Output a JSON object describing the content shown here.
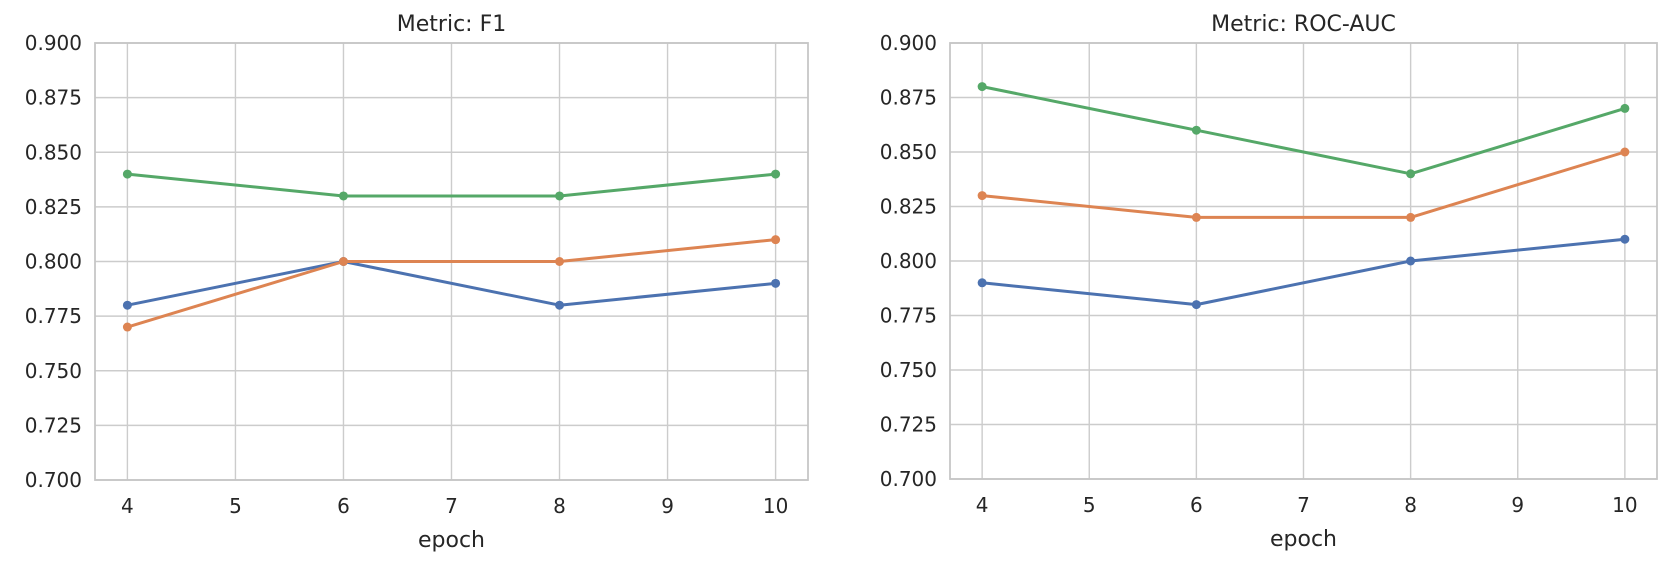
{
  "style": {
    "background": "#ffffff",
    "grid_color": "#cccccc",
    "spine_color": "#c6c6c6",
    "text_color": "#262626"
  },
  "chart_data": [
    {
      "type": "line",
      "title": "Metric: F1",
      "xlabel": "epoch",
      "ylabel": "",
      "grid": true,
      "legend": "none",
      "x": [
        4,
        6,
        8,
        10
      ],
      "xlim": [
        3.7,
        10.3
      ],
      "ylim": [
        0.7,
        0.9
      ],
      "xticks": [
        4,
        5,
        6,
        7,
        8,
        9,
        10
      ],
      "xtick_labels": [
        "4",
        "5",
        "6",
        "7",
        "8",
        "9",
        "10"
      ],
      "yticks": [
        0.7,
        0.725,
        0.75,
        0.775,
        0.8,
        0.825,
        0.85,
        0.875,
        0.9
      ],
      "ytick_labels": [
        "0.700",
        "0.725",
        "0.750",
        "0.775",
        "0.800",
        "0.825",
        "0.850",
        "0.875",
        "0.900"
      ],
      "series": [
        {
          "name": "blue-series",
          "color": "#4C72B0",
          "values": [
            0.78,
            0.8,
            0.78,
            0.79
          ]
        },
        {
          "name": "orange-series",
          "color": "#DD8452",
          "values": [
            0.77,
            0.8,
            0.8,
            0.81
          ]
        },
        {
          "name": "green-series",
          "color": "#55A868",
          "values": [
            0.84,
            0.83,
            0.83,
            0.84
          ]
        }
      ]
    },
    {
      "type": "line",
      "title": "Metric: ROC-AUC",
      "xlabel": "epoch",
      "ylabel": "",
      "grid": true,
      "legend": "none",
      "x": [
        4,
        6,
        8,
        10
      ],
      "xlim": [
        3.7,
        10.3
      ],
      "ylim": [
        0.7,
        0.9
      ],
      "xticks": [
        4,
        5,
        6,
        7,
        8,
        9,
        10
      ],
      "xtick_labels": [
        "4",
        "5",
        "6",
        "7",
        "8",
        "9",
        "10"
      ],
      "yticks": [
        0.7,
        0.725,
        0.75,
        0.775,
        0.8,
        0.825,
        0.85,
        0.875,
        0.9
      ],
      "ytick_labels": [
        "0.700",
        "0.725",
        "0.750",
        "0.775",
        "0.800",
        "0.825",
        "0.850",
        "0.875",
        "0.900"
      ],
      "series": [
        {
          "name": "blue-series",
          "color": "#4C72B0",
          "values": [
            0.79,
            0.78,
            0.8,
            0.81
          ]
        },
        {
          "name": "orange-series",
          "color": "#DD8452",
          "values": [
            0.83,
            0.82,
            0.82,
            0.85
          ]
        },
        {
          "name": "green-series",
          "color": "#55A868",
          "values": [
            0.88,
            0.86,
            0.84,
            0.87
          ]
        }
      ]
    }
  ]
}
